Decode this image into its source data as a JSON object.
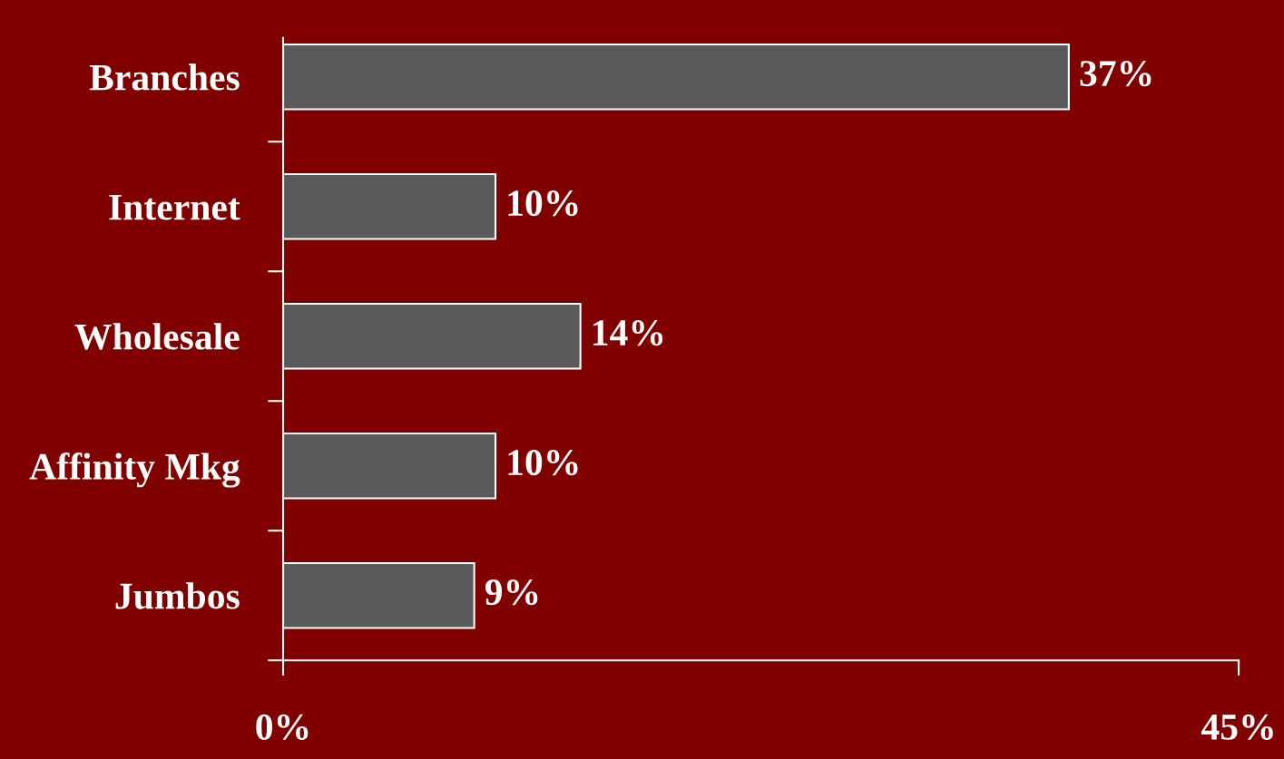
{
  "chart_data": {
    "type": "bar",
    "orientation": "horizontal",
    "categories": [
      "Branches",
      "Internet",
      "Wholesale",
      "Affinity Mkg",
      "Jumbos"
    ],
    "values": [
      37,
      10,
      14,
      10,
      9
    ],
    "color": "#5a5a5a",
    "value_labels": [
      "37%",
      "10%",
      "14%",
      "10%",
      "9%"
    ],
    "xlim": [
      0,
      45
    ],
    "xticks": [
      {
        "value": 0,
        "label": "0%"
      },
      {
        "value": 45,
        "label": "45%"
      }
    ],
    "grid": false,
    "legend": false
  }
}
